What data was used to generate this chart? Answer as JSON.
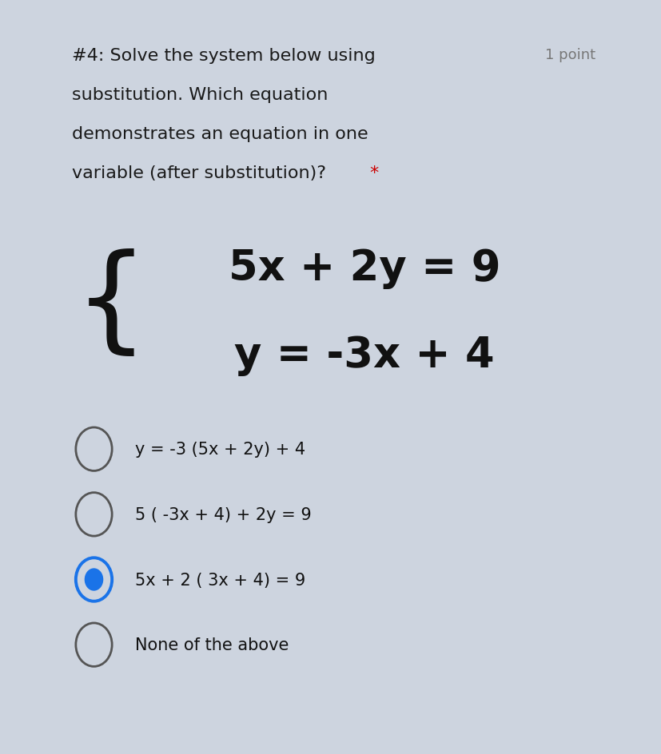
{
  "background_color": "#ffffff",
  "outer_bg_color": "#cdd4df",
  "points_text": "1 point",
  "eq1": "5x + 2y = 9",
  "eq2": "y = -3x + 4",
  "title_lines": [
    "#4: Solve the system below using",
    "substitution. Which equation",
    "demonstrates an equation in one",
    "variable (after substitution)?"
  ],
  "options": [
    "y = -3 (5x + 2y) + 4",
    "5 ( -3x + 4) + 2y = 9",
    "5x + 2 ( 3x + 4) = 9",
    "None of the above"
  ],
  "selected_option": 2,
  "title_fontsize": 16,
  "points_fontsize": 13,
  "eq_fontsize": 38,
  "option_fontsize": 15,
  "title_color": "#1a1a1a",
  "points_color": "#777777",
  "eq_color": "#111111",
  "option_color": "#111111",
  "star_color": "#cc0000",
  "selected_outer_color": "#1a73e8",
  "selected_inner_color": "#1a73e8",
  "unselected_color": "#555555"
}
